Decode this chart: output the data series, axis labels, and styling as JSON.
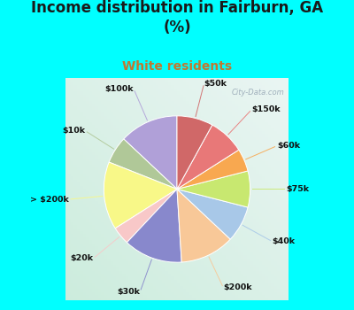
{
  "title": "Income distribution in Fairburn, GA\n(%)",
  "subtitle": "White residents",
  "title_color": "#1a1a1a",
  "subtitle_color": "#c07830",
  "bg_color": "#00ffff",
  "labels": [
    "$100k",
    "$10k",
    "> $200k",
    "$20k",
    "$30k",
    "$200k",
    "$40k",
    "$75k",
    "$60k",
    "$150k",
    "$50k"
  ],
  "values": [
    13,
    6,
    15,
    4,
    13,
    12,
    8,
    8,
    5,
    8,
    8
  ],
  "colors": [
    "#b0a0d8",
    "#b0c898",
    "#f8f888",
    "#f8c8c8",
    "#8888cc",
    "#f8c898",
    "#a8c8e8",
    "#c8e870",
    "#f8a850",
    "#e87878",
    "#d06868"
  ],
  "watermark": "City-Data.com",
  "startangle": 90,
  "chart_bg_left": "#c8e8d8",
  "chart_bg_right": "#e8f0f0"
}
